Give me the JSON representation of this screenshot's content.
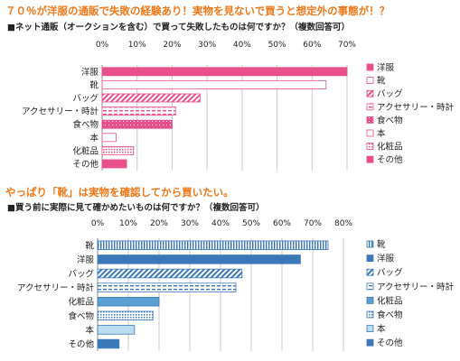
{
  "section1": {
    "headline": "７０％が洋服の通販で失敗の経験あり！実物を見ないで買うと想定外の事態が！？",
    "question": "■ネット通販（オークションを含む）で買って失敗したものは何ですか？（複数回答可）"
  },
  "section2": {
    "headline": "やっぱり「靴」は実物を確認してから買いたい。",
    "question": "■買う前に実際に見て確かめたいものは何ですか？（複数回答可）"
  },
  "chart_data": [
    {
      "type": "bar",
      "orientation": "horizontal",
      "title": "ネット通販（オークションを含む）で買って失敗したものは何ですか？（複数回答可）",
      "categories": [
        "洋服",
        "靴",
        "バッグ",
        "アクセサリー・時計",
        "食べ物",
        "本",
        "化粧品",
        "その他"
      ],
      "values": [
        70,
        64,
        28,
        21,
        20,
        4,
        9,
        7
      ],
      "xlim": [
        0,
        70
      ],
      "ticks": [
        0,
        10,
        20,
        30,
        40,
        50,
        60,
        70
      ],
      "tick_labels": [
        "0%",
        "10%",
        "20%",
        "30%",
        "40%",
        "50%",
        "60%",
        "70%"
      ],
      "grid": true,
      "legend": "right",
      "legend_entries": [
        "洋服",
        "靴",
        "バッグ",
        "アクセサリー・時計",
        "食べ物",
        "本",
        "化粧品",
        "その他"
      ],
      "colors": [
        "#e8508c",
        "#ffffff",
        "#e8508c",
        "#f4a0c4",
        "#e8508c",
        "#ffffff",
        "#f8c8dc",
        "#e8508c"
      ],
      "accent": "#e8508c"
    },
    {
      "type": "bar",
      "orientation": "horizontal",
      "title": "買う前に実際に見て確かめたいものは何ですか？（複数回答可）",
      "categories": [
        "靴",
        "洋服",
        "バッグ",
        "アクセサリー・時計",
        "化粧品",
        "食べ物",
        "本",
        "その他"
      ],
      "values": [
        75,
        66,
        47,
        45,
        20,
        18,
        12,
        7
      ],
      "xlim": [
        0,
        80
      ],
      "ticks": [
        0,
        10,
        20,
        30,
        40,
        50,
        60,
        70,
        80
      ],
      "tick_labels": [
        "0%",
        "10%",
        "20%",
        "30%",
        "40%",
        "50%",
        "60%",
        "70%",
        "80%"
      ],
      "grid": true,
      "legend": "right",
      "legend_entries": [
        "靴",
        "洋服",
        "バッグ",
        "アクセサリー・時計",
        "化粧品",
        "食べ物",
        "本",
        "その他"
      ],
      "colors": [
        "#8cc8e8",
        "#3a78b8",
        "#4a90cc",
        "#a0d0ec",
        "#5aa0d0",
        "#6aaad8",
        "#bcdcf0",
        "#3a78b8"
      ],
      "accent": "#3a78b8"
    }
  ]
}
